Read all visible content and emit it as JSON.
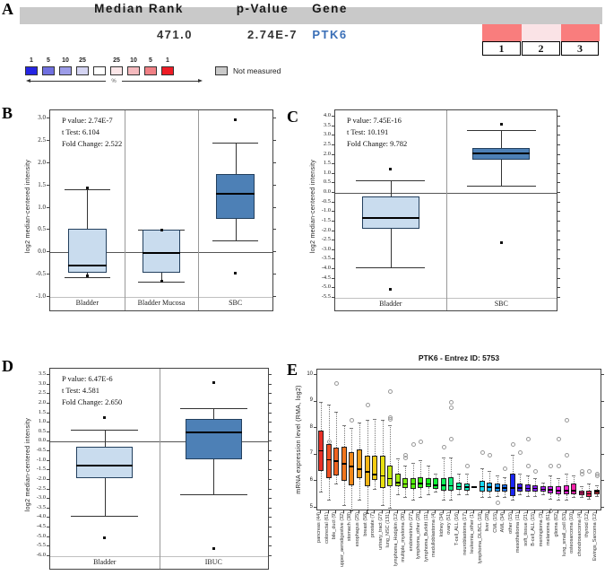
{
  "panels": {
    "a_label": "A",
    "b_label": "B",
    "c_label": "C",
    "d_label": "D",
    "e_label": "E"
  },
  "panelA": {
    "header_bg": "#c9c9c9",
    "headers": [
      "Median Rank",
      "p-Value",
      "Gene"
    ],
    "median_rank": "471.0",
    "p_value": "2.74E-7",
    "gene": "PTK6",
    "gene_color": "#3a6fb7",
    "heatmap_cells": [
      {
        "label": "1",
        "color": "#f97d7d"
      },
      {
        "label": "2",
        "color": "#fae3e6"
      },
      {
        "label": "3",
        "color": "#f97d7d"
      }
    ],
    "legend": {
      "scale": [
        {
          "label": "1",
          "color": "#2525e4"
        },
        {
          "label": "5",
          "color": "#7070e0"
        },
        {
          "label": "10",
          "color": "#9c9ce8"
        },
        {
          "label": "25",
          "color": "#d4d4f2"
        },
        {
          "label": "",
          "color": "#ffffff"
        },
        {
          "label": "25",
          "color": "#fbe6e8"
        },
        {
          "label": "10",
          "color": "#f5babe"
        },
        {
          "label": "5",
          "color": "#f08085"
        },
        {
          "label": "1",
          "color": "#ee1c25"
        }
      ],
      "percent_label": "%",
      "not_measured_label": "Not measured",
      "not_measured_color": "#c9c9c9"
    }
  },
  "chart_data": [
    {
      "type": "box",
      "panel": "B",
      "stats": [
        "P value: 2.74E-7",
        "t Test:  6.104",
        "Fold Change:  2.522"
      ],
      "ylabel": "log2 median-centered intensity",
      "ylim": [
        -1.0,
        3.0
      ],
      "tick_step": 0.5,
      "zero_line": true,
      "categories": [
        "Bladder",
        "Bladder Mucosa",
        "SBC"
      ],
      "boxes": [
        {
          "low": -0.56,
          "q1": -0.46,
          "median": -0.3,
          "q3": 0.52,
          "high": 1.42,
          "outliers": [
            1.44,
            -0.52
          ],
          "color": "#c9dcee"
        },
        {
          "low": -0.65,
          "q1": -0.46,
          "median": -0.02,
          "q3": 0.5,
          "high": 0.5,
          "outliers": [
            0.5,
            -0.65
          ],
          "color": "#c9dcee"
        },
        {
          "low": 0.27,
          "q1": 0.75,
          "median": 1.32,
          "q3": 1.75,
          "high": 2.45,
          "outliers": [
            2.97,
            -0.46
          ],
          "color": "#4d80b6"
        }
      ]
    },
    {
      "type": "box",
      "panel": "C",
      "stats": [
        "P value: 7.45E-16",
        "t Test:  10.191",
        "Fold Change:  9.782"
      ],
      "ylabel": "log2 median-centered intensity",
      "ylim": [
        -5.5,
        4.0
      ],
      "tick_step": 0.5,
      "zero_line": true,
      "categories": [
        "Bladder",
        "SBC"
      ],
      "boxes": [
        {
          "low": -3.9,
          "q1": -1.9,
          "median": -1.3,
          "q3": -0.2,
          "high": 0.65,
          "outliers": [
            1.25,
            -5.05
          ],
          "color": "#c9dcee"
        },
        {
          "low": 0.4,
          "q1": 1.75,
          "median": 2.05,
          "q3": 2.35,
          "high": 3.3,
          "outliers": [
            3.6,
            -2.6
          ],
          "color": "#4d80b6"
        }
      ]
    },
    {
      "type": "box",
      "panel": "D",
      "stats": [
        "P value: 6.47E-6",
        "t Test: 4.581",
        "Fold Change: 2.650"
      ],
      "ylabel": "log2 median-centered intensity",
      "ylim": [
        -6.0,
        3.5
      ],
      "tick_step": 0.5,
      "zero_line": true,
      "categories": [
        "Bladder",
        "IBUC"
      ],
      "boxes": [
        {
          "low": -3.9,
          "q1": -1.9,
          "median": -1.25,
          "q3": -0.25,
          "high": 0.65,
          "outliers": [
            1.25,
            -5.05
          ],
          "color": "#c9dcee"
        },
        {
          "low": -2.75,
          "q1": -0.9,
          "median": 0.5,
          "q3": 1.2,
          "high": 1.75,
          "outliers": [
            3.1,
            -5.6
          ],
          "color": "#4d80b6"
        }
      ]
    },
    {
      "type": "multibox",
      "panel": "E",
      "title": "PTK6  -  Entrez ID: 5753",
      "ylabel": "mRNA expression level (RMA, log2)",
      "ylim": [
        5,
        10
      ],
      "tick_step": 1,
      "boxes": [
        {
          "label": "pancreas (44)",
          "low": 5.6,
          "q1": 6.4,
          "median": 7.15,
          "q3": 7.9,
          "high": 9.0,
          "outliers": [],
          "color": "#e92f28"
        },
        {
          "label": "colorectal (61)",
          "low": 5.3,
          "q1": 6.1,
          "median": 6.8,
          "q3": 7.4,
          "high": 8.9,
          "outliers": [
            7.5
          ],
          "color": "#ee4e22"
        },
        {
          "label": "bile_duct (9)",
          "low": 5.9,
          "q1": 6.2,
          "median": 6.75,
          "q3": 7.25,
          "high": 8.6,
          "outliers": [
            9.7
          ],
          "color": "#ef611f"
        },
        {
          "label": "upper_aerodigestive (32)",
          "low": 5.1,
          "q1": 6.0,
          "median": 6.65,
          "q3": 7.3,
          "high": 8.1,
          "outliers": [],
          "color": "#f0751c"
        },
        {
          "label": "stomach (38)",
          "low": 4.9,
          "q1": 5.85,
          "median": 6.55,
          "q3": 7.1,
          "high": 8.0,
          "outliers": [
            8.3
          ],
          "color": "#f1881a"
        },
        {
          "label": "esophagus (25)",
          "low": 5.3,
          "q1": 6.1,
          "median": 6.45,
          "q3": 7.2,
          "high": 8.2,
          "outliers": [],
          "color": "#f19e17"
        },
        {
          "label": "breast (58)",
          "low": 4.8,
          "q1": 5.8,
          "median": 6.35,
          "q3": 6.95,
          "high": 8.3,
          "outliers": [
            8.9
          ],
          "color": "#f2b514"
        },
        {
          "label": "prostate (7)",
          "low": 5.7,
          "q1": 6.05,
          "median": 6.25,
          "q3": 6.95,
          "high": 8.35,
          "outliers": [],
          "color": "#f3cc12"
        },
        {
          "label": "urinary_tract (27)",
          "low": 5.1,
          "q1": 5.75,
          "median": 6.2,
          "q3": 6.95,
          "high": 8.3,
          "outliers": [],
          "color": "#e8e010"
        },
        {
          "label": "lung_NSC (131)",
          "low": 5.0,
          "q1": 5.8,
          "median": 6.1,
          "q3": 6.6,
          "high": 8.1,
          "outliers": [
            9.4,
            8.4,
            8.35
          ],
          "color": "#c4e90f"
        },
        {
          "label": "lymphoma_Hodgkin (12)",
          "low": 5.5,
          "q1": 5.8,
          "median": 5.95,
          "q3": 6.3,
          "high": 6.85,
          "outliers": [],
          "color": "#9fec0e"
        },
        {
          "label": "multiple_myeloma (30)",
          "low": 5.4,
          "q1": 5.75,
          "median": 5.9,
          "q3": 6.1,
          "high": 6.6,
          "outliers": [
            7.0,
            6.9
          ],
          "color": "#79ee0d"
        },
        {
          "label": "endometrium (27)",
          "low": 5.3,
          "q1": 5.7,
          "median": 5.9,
          "q3": 6.1,
          "high": 6.7,
          "outliers": [
            7.4
          ],
          "color": "#55ef0d"
        },
        {
          "label": "lymphoma_other (28)",
          "low": 5.4,
          "q1": 5.75,
          "median": 5.92,
          "q3": 6.15,
          "high": 6.8,
          "outliers": [
            7.5
          ],
          "color": "#33f00d"
        },
        {
          "label": "lymphoma_Burkitt (11)",
          "low": 5.5,
          "q1": 5.78,
          "median": 5.9,
          "q3": 6.1,
          "high": 6.6,
          "outliers": [],
          "color": "#14f016"
        },
        {
          "label": "medulloblastoma (4)",
          "low": 5.6,
          "q1": 5.72,
          "median": 5.85,
          "q3": 6.1,
          "high": 6.3,
          "outliers": [],
          "color": "#0ef135"
        },
        {
          "label": "kidney (34)",
          "low": 5.3,
          "q1": 5.65,
          "median": 5.85,
          "q3": 6.1,
          "high": 6.9,
          "outliers": [
            7.3
          ],
          "color": "#0ff158"
        },
        {
          "label": "ovary (51)",
          "low": 5.3,
          "q1": 5.65,
          "median": 5.82,
          "q3": 6.15,
          "high": 6.9,
          "outliers": [
            9.0,
            8.8,
            7.6
          ],
          "color": "#10f27c"
        },
        {
          "label": "T-cell_ALL (16)",
          "low": 5.5,
          "q1": 5.68,
          "median": 5.8,
          "q3": 5.95,
          "high": 6.3,
          "outliers": [],
          "color": "#11f2a0"
        },
        {
          "label": "neuroblastoma (17)",
          "low": 5.5,
          "q1": 5.65,
          "median": 5.78,
          "q3": 5.92,
          "high": 6.3,
          "outliers": [
            6.6
          ],
          "color": "#12f3c4"
        },
        {
          "label": "leukemia_other (1)",
          "low": 5.78,
          "q1": 5.78,
          "median": 5.78,
          "q3": 5.78,
          "high": 5.78,
          "outliers": [],
          "color": "#13f3e8"
        },
        {
          "label": "lymphoma_DLBCL (18)",
          "low": 5.4,
          "q1": 5.6,
          "median": 5.8,
          "q3": 6.0,
          "high": 6.5,
          "outliers": [
            7.1
          ],
          "color": "#14d9f4"
        },
        {
          "label": "liver (28)",
          "low": 5.4,
          "q1": 5.6,
          "median": 5.78,
          "q3": 5.95,
          "high": 6.4,
          "outliers": [
            7.0
          ],
          "color": "#15b5f4"
        },
        {
          "label": "CML (15)",
          "low": 5.45,
          "q1": 5.62,
          "median": 5.75,
          "q3": 5.9,
          "high": 6.2,
          "outliers": [
            5.2
          ],
          "color": "#1691f5"
        },
        {
          "label": "AML (34)",
          "low": 5.4,
          "q1": 5.6,
          "median": 5.75,
          "q3": 5.88,
          "high": 6.15,
          "outliers": [
            6.5
          ],
          "color": "#176df5"
        },
        {
          "label": "other (15)",
          "low": 5.3,
          "q1": 5.45,
          "median": 5.75,
          "q3": 6.3,
          "high": 7.0,
          "outliers": [
            7.4
          ],
          "color": "#1a26f6"
        },
        {
          "label": "mesothelioma (11)",
          "low": 5.5,
          "q1": 5.62,
          "median": 5.75,
          "q3": 5.9,
          "high": 6.3,
          "outliers": [
            7.1
          ],
          "color": "#3c1bf7"
        },
        {
          "label": "soft_tissue (21)",
          "low": 5.45,
          "q1": 5.6,
          "median": 5.73,
          "q3": 5.88,
          "high": 6.2,
          "outliers": [
            6.6,
            7.6
          ],
          "color": "#611cf7"
        },
        {
          "label": "B-cell_ALL (15)",
          "low": 5.45,
          "q1": 5.6,
          "median": 5.73,
          "q3": 5.85,
          "high": 6.1,
          "outliers": [
            6.4
          ],
          "color": "#861df8"
        },
        {
          "label": "meningioma (3)",
          "low": 5.5,
          "q1": 5.6,
          "median": 5.7,
          "q3": 5.82,
          "high": 5.95,
          "outliers": [],
          "color": "#ab1ef8"
        },
        {
          "label": "melanoma (61)",
          "low": 5.35,
          "q1": 5.55,
          "median": 5.68,
          "q3": 5.82,
          "high": 6.2,
          "outliers": [
            6.6,
            4.9
          ],
          "color": "#d01ff9"
        },
        {
          "label": "glioma (62)",
          "low": 5.3,
          "q1": 5.5,
          "median": 5.65,
          "q3": 5.8,
          "high": 6.1,
          "outliers": [
            7.6,
            6.6
          ],
          "color": "#f620f3"
        },
        {
          "label": "lung_small_cell (53)",
          "low": 5.3,
          "q1": 5.5,
          "median": 5.65,
          "q3": 5.85,
          "high": 6.3,
          "outliers": [
            8.3,
            7.0
          ],
          "color": "#f621ce"
        },
        {
          "label": "osteosarcoma (10)",
          "low": 5.4,
          "q1": 5.52,
          "median": 5.65,
          "q3": 5.9,
          "high": 6.2,
          "outliers": [],
          "color": "#f722a9"
        },
        {
          "label": "chondrosarcoma (4)",
          "low": 5.4,
          "q1": 5.48,
          "median": 5.56,
          "q3": 5.65,
          "high": 5.8,
          "outliers": [
            6.4,
            6.3
          ],
          "color": "#f72384"
        },
        {
          "label": "thyroid (12)",
          "low": 5.35,
          "q1": 5.42,
          "median": 5.52,
          "q3": 5.65,
          "high": 5.9,
          "outliers": [
            6.4
          ],
          "color": "#f8245f"
        },
        {
          "label": "Ewings_Sarcoma (12)",
          "low": 5.45,
          "q1": 5.52,
          "median": 5.6,
          "q3": 5.68,
          "high": 5.85,
          "outliers": [
            6.3,
            6.2
          ],
          "color": "#e8323c"
        }
      ]
    }
  ]
}
